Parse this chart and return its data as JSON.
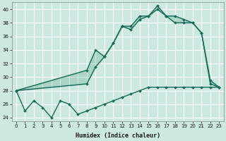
{
  "xlabel": "Humidex (Indice chaleur)",
  "bg_color": "#cce8e0",
  "grid_color": "#b0d8d0",
  "line_color": "#1a6b5a",
  "fill_color": "#4a9a88",
  "xlim": [
    -0.5,
    23.5
  ],
  "ylim": [
    23.5,
    41.0
  ],
  "xticks": [
    0,
    1,
    2,
    3,
    4,
    5,
    6,
    7,
    8,
    9,
    10,
    11,
    12,
    13,
    14,
    15,
    16,
    17,
    18,
    19,
    20,
    21,
    22,
    23
  ],
  "yticks": [
    24,
    26,
    28,
    30,
    32,
    34,
    36,
    38,
    40
  ],
  "line1_x": [
    0,
    1,
    2,
    3,
    4,
    5,
    6,
    7,
    8,
    9,
    10,
    11,
    12,
    13,
    14,
    15,
    16,
    17,
    18,
    19,
    20,
    21,
    22,
    23
  ],
  "line1_y": [
    28,
    25,
    26.5,
    25.5,
    24,
    26.5,
    26,
    24.5,
    25,
    25.5,
    26,
    26.5,
    27,
    27.5,
    28,
    28.5,
    28.5,
    28.5,
    28.5,
    28.5,
    28.5,
    28.5,
    28.5,
    28.5
  ],
  "line2_x": [
    0,
    8,
    9,
    10,
    11,
    12,
    13,
    14,
    15,
    16,
    17,
    18,
    19,
    20,
    21,
    22,
    23
  ],
  "line2_y": [
    28,
    29,
    31.5,
    33,
    35,
    37.5,
    37.5,
    39,
    39,
    40,
    39,
    38,
    38,
    38,
    36.5,
    29,
    28.5
  ],
  "line3_x": [
    0,
    8,
    9,
    10,
    11,
    12,
    13,
    14,
    15,
    16,
    17,
    18,
    19,
    20,
    21,
    22,
    23
  ],
  "line3_y": [
    28,
    31,
    34,
    33,
    35,
    37.5,
    37,
    38.5,
    39,
    40.5,
    39,
    39,
    38.5,
    38,
    36.5,
    29.5,
    28.5
  ]
}
